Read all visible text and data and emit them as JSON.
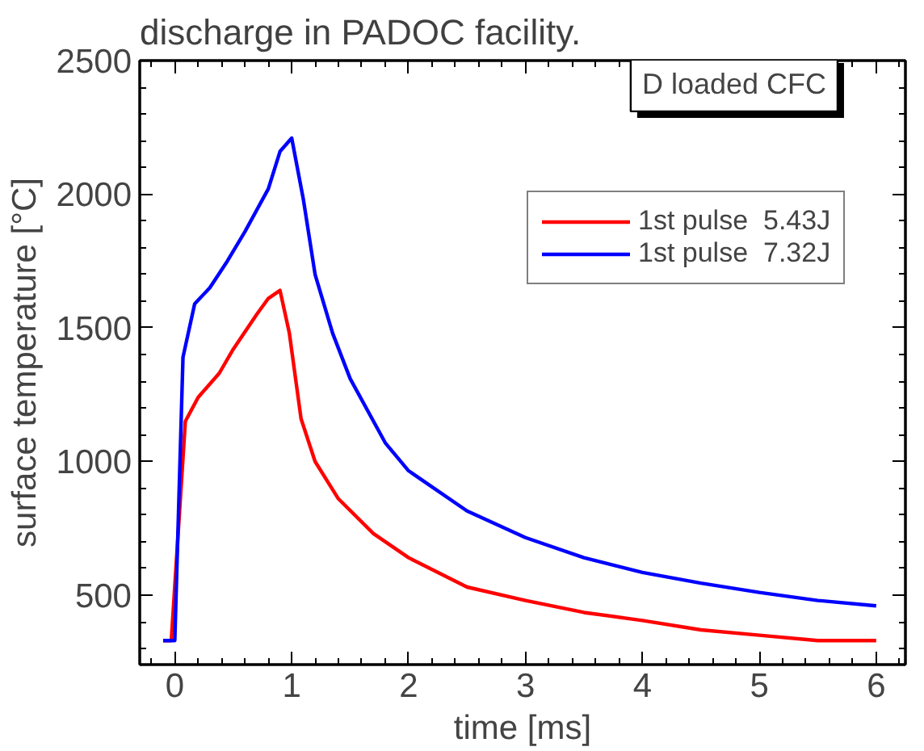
{
  "chart_data": {
    "type": "line",
    "title": "discharge in PADOC facility.",
    "xlabel": "time [ms]",
    "ylabel": "surface temperature [°C]",
    "xlim": [
      -0.3,
      6.25
    ],
    "ylim": [
      240,
      2500
    ],
    "xticks": [
      0,
      1,
      2,
      3,
      4,
      5,
      6
    ],
    "yticks": [
      500,
      1000,
      1500,
      2000,
      2500
    ],
    "grid": false,
    "legend": "top right",
    "line_style": "solid",
    "marker": "none",
    "annotations": [
      "D loaded CFC"
    ],
    "series": [
      {
        "name": "1st pulse  5.43J",
        "color": "#ff0000",
        "x": [
          -0.1,
          -0.03,
          0.09,
          0.2,
          0.38,
          0.5,
          0.7,
          0.8,
          0.9,
          0.98,
          1.08,
          1.2,
          1.4,
          1.7,
          2.0,
          2.5,
          3.0,
          3.5,
          4.0,
          4.5,
          5.0,
          5.5,
          6.0
        ],
        "values": [
          330,
          330,
          1150,
          1240,
          1330,
          1420,
          1550,
          1610,
          1640,
          1480,
          1160,
          1000,
          860,
          730,
          640,
          530,
          480,
          435,
          405,
          370,
          350,
          330,
          330
        ]
      },
      {
        "name": "1st pulse  7.32J",
        "color": "#0000ff",
        "x": [
          -0.1,
          0.0,
          0.07,
          0.17,
          0.3,
          0.45,
          0.6,
          0.8,
          0.9,
          1.0,
          1.1,
          1.2,
          1.35,
          1.5,
          1.8,
          2.0,
          2.5,
          3.0,
          3.5,
          4.0,
          4.5,
          5.0,
          5.5,
          6.0
        ],
        "values": [
          330,
          330,
          1390,
          1590,
          1650,
          1750,
          1860,
          2020,
          2160,
          2210,
          1980,
          1700,
          1480,
          1310,
          1070,
          965,
          815,
          715,
          640,
          585,
          545,
          510,
          480,
          460
        ]
      }
    ]
  }
}
